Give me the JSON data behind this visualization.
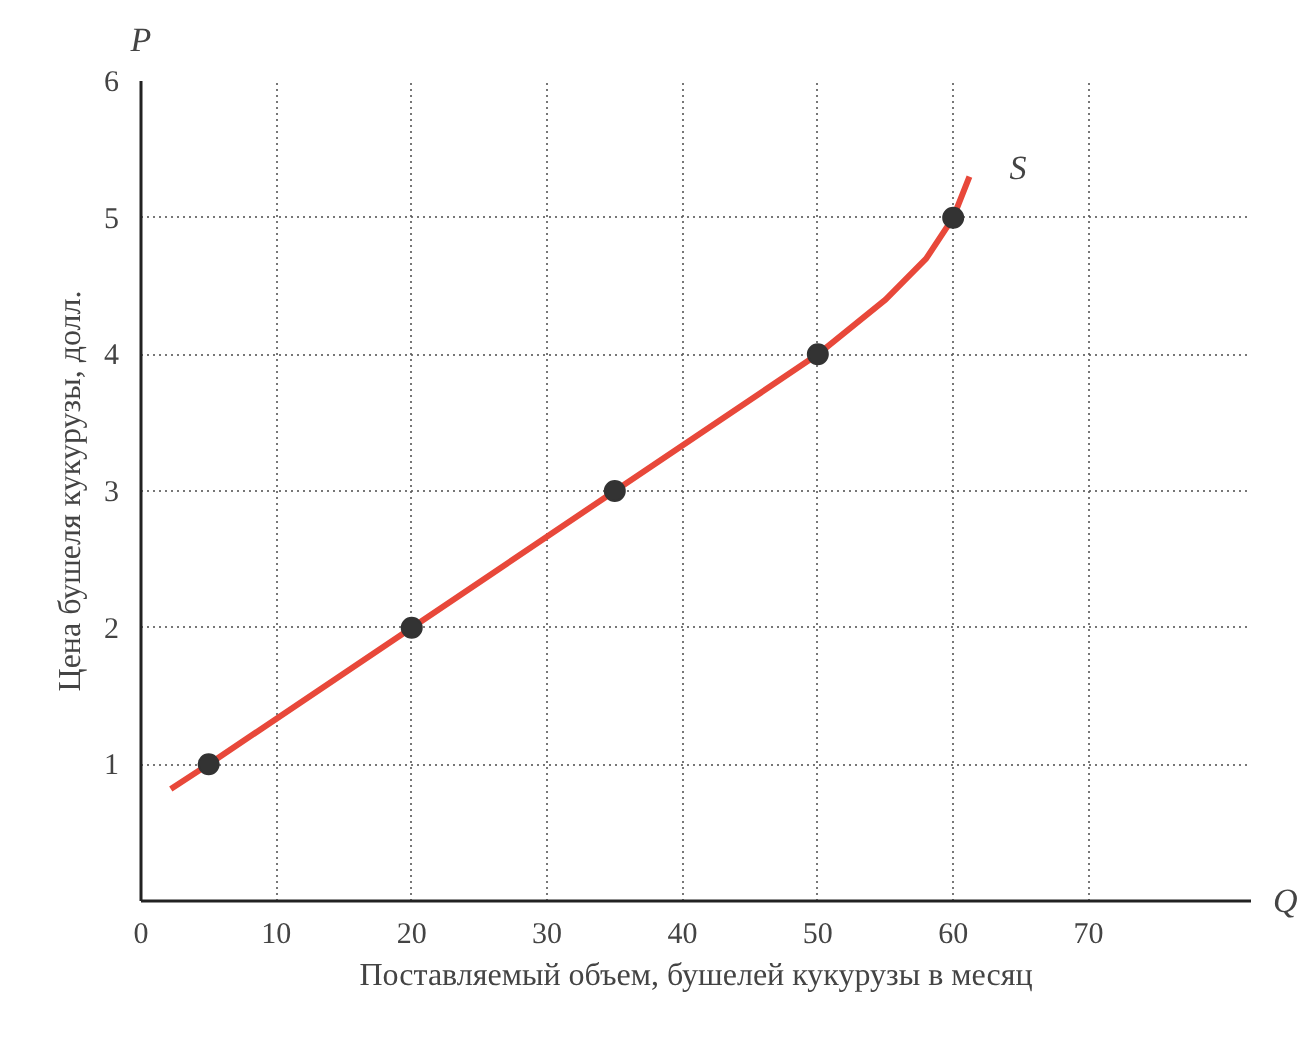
{
  "chart_data": {
    "type": "line",
    "xlabel": "Поставляемый объем, бушелей кукурузы в месяц",
    "ylabel": "Цена бушеля кукурузы, долл.",
    "annotations": [
      "P",
      "Q",
      "S"
    ],
    "xlim": [
      0,
      82
    ],
    "ylim": [
      0,
      6
    ],
    "xticks": [
      0,
      10,
      20,
      30,
      40,
      50,
      60,
      70
    ],
    "yticks": [
      1,
      2,
      3,
      4,
      5,
      6
    ],
    "grid": true,
    "line_style": "solid",
    "marker": "none",
    "series": [
      {
        "color": "#e8483a",
        "x": [
          2.2,
          5,
          20,
          35,
          50,
          55,
          58,
          60,
          61.2
        ],
        "values": [
          0.82,
          1,
          2,
          3,
          4,
          4.4,
          4.7,
          5,
          5.3
        ]
      },
      {
        "type": "scatter",
        "color": "#333333",
        "marker": "circle",
        "x": [
          5,
          20,
          35,
          50,
          60
        ],
        "values": [
          1,
          2,
          3,
          4,
          5
        ]
      }
    ]
  }
}
